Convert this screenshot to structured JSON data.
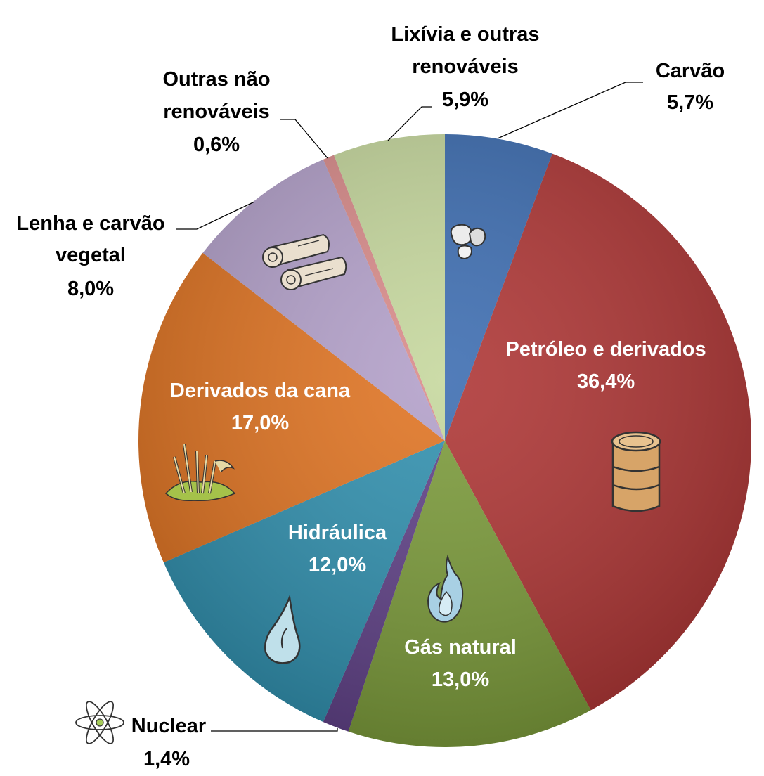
{
  "chart_data": {
    "type": "pie",
    "start_angle_deg": 0,
    "direction": "clockwise",
    "slices": [
      {
        "name": "Carvão",
        "lines": [
          "Carvão"
        ],
        "value": 5.7,
        "value_label": "5,7%",
        "color": "#3A6BB0",
        "icon": "coal-icon"
      },
      {
        "name": "Petróleo e derivados",
        "lines": [
          "Petróleo e derivados"
        ],
        "value": 36.4,
        "value_label": "36,4%",
        "color": "#AD3332",
        "icon": "oil-barrel-icon"
      },
      {
        "name": "Gás natural",
        "lines": [
          "Gás natural"
        ],
        "value": 13.0,
        "value_label": "13,0%",
        "color": "#7A9A38",
        "icon": "flame-icon"
      },
      {
        "name": "Nuclear",
        "lines": [
          "Nuclear"
        ],
        "value": 1.4,
        "value_label": "1,4%",
        "color": "#5E3F86",
        "icon": "atom-icon"
      },
      {
        "name": "Hidráulica",
        "lines": [
          "Hidráulica"
        ],
        "value": 12.0,
        "value_label": "12,0%",
        "color": "#2E8FAE",
        "icon": "water-drop-icon"
      },
      {
        "name": "Derivados da cana",
        "lines": [
          "Derivados da cana"
        ],
        "value": 17.0,
        "value_label": "17,0%",
        "color": "#E0721F",
        "icon": "sugarcane-icon"
      },
      {
        "name": "Lenha e carvão vegetal",
        "lines": [
          "Lenha e carvão",
          "vegetal"
        ],
        "value": 8.0,
        "value_label": "8,0%",
        "color": "#B29FC9",
        "icon": "firewood-icon"
      },
      {
        "name": "Outras não renováveis",
        "lines": [
          "Outras não",
          "renováveis"
        ],
        "value": 0.6,
        "value_label": "0,6%",
        "color": "#D98A89",
        "icon": ""
      },
      {
        "name": "Lixívia e outras renováveis",
        "lines": [
          "Lixívia e outras",
          "renováveis"
        ],
        "value": 5.9,
        "value_label": "5,9%",
        "color": "#C5D79C",
        "icon": ""
      }
    ]
  }
}
